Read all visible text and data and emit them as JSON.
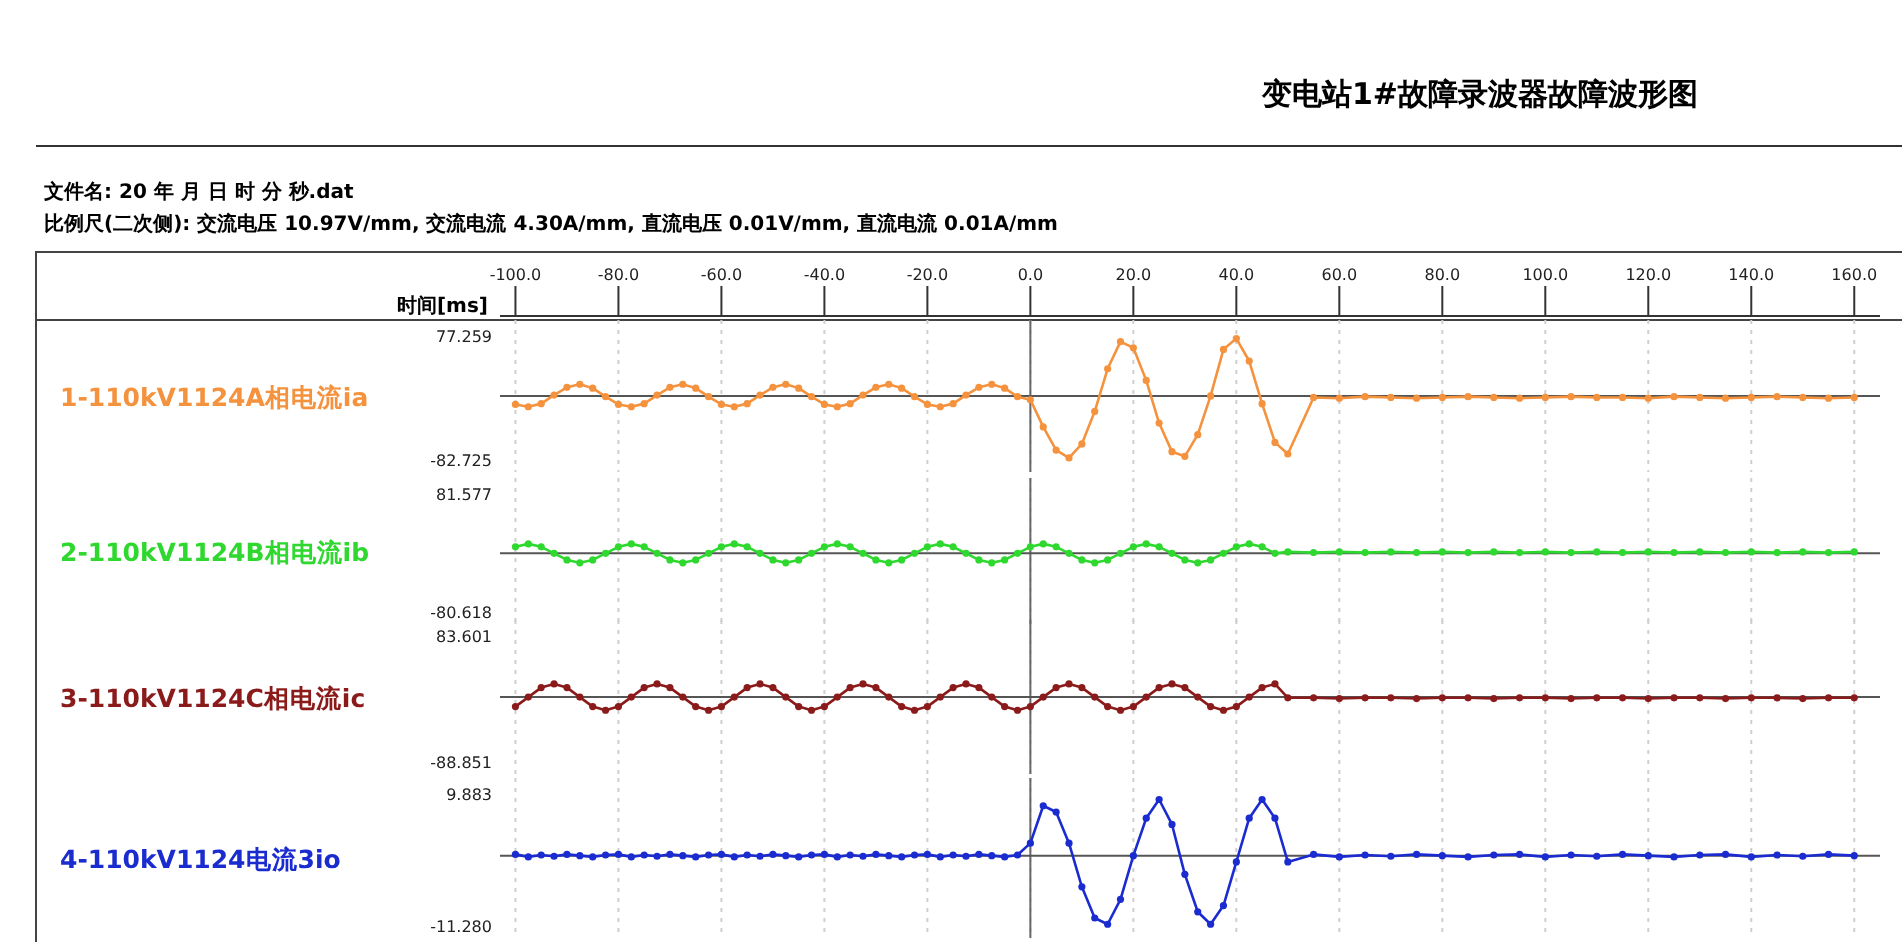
{
  "chart_data": [
    {
      "type": "line",
      "title": "变电站1#故障录波器故障波形图",
      "subtitle": "文件名: 20 年 月 日 时 分 秒.dat",
      "annotations": [
        "比例尺(二次侧): 交流电压 10.97V/mm, 交流电流 4.30A/mm, 直流电压 0.01V/mm, 直流电流 0.01A/mm"
      ],
      "xlabel": "时间[ms]",
      "xlim": [
        -103,
        165
      ],
      "xticks": [
        {
          "value": -100,
          "label": "-100.0"
        },
        {
          "value": -80,
          "label": "-80.0"
        },
        {
          "value": -60,
          "label": "-60.0"
        },
        {
          "value": -40,
          "label": "-40.0"
        },
        {
          "value": -20,
          "label": "-20.0"
        },
        {
          "value": 0,
          "label": "0.0"
        },
        {
          "value": 20,
          "label": "20.0"
        },
        {
          "value": 40,
          "label": "40.0"
        },
        {
          "value": 60,
          "label": "60.0"
        },
        {
          "value": 80,
          "label": "80.0"
        },
        {
          "value": 100,
          "label": "100.0"
        },
        {
          "value": 120,
          "label": "120.0"
        },
        {
          "value": 140,
          "label": "140.0"
        },
        {
          "value": 160,
          "label": "160.0"
        }
      ],
      "ylim": [
        -82.725,
        77.259
      ],
      "yticks": [
        -82.725,
        77.259
      ],
      "grid": "x",
      "marker": "circle",
      "ref_lines": [
        {
          "axis": "x",
          "value": 0,
          "color": "#666666"
        },
        {
          "axis": "y",
          "value": 0,
          "color": "#555555"
        }
      ],
      "x": [
        -100,
        -97.5,
        -95,
        -92.5,
        -90,
        -87.5,
        -85,
        -82.5,
        -80,
        -77.5,
        -75,
        -72.5,
        -70,
        -67.5,
        -65,
        -62.5,
        -60,
        -57.5,
        -55,
        -52.5,
        -50,
        -47.5,
        -45,
        -42.5,
        -40,
        -37.5,
        -35,
        -32.5,
        -30,
        -27.5,
        -25,
        -22.5,
        -20,
        -17.5,
        -15,
        -12.5,
        -10,
        -7.5,
        -5,
        -2.5,
        0,
        2.5,
        5,
        7.5,
        10,
        12.5,
        15,
        17.5,
        20,
        22.5,
        25,
        27.5,
        30,
        32.5,
        35,
        37.5,
        40,
        42.5,
        45,
        47.5,
        50,
        55,
        60,
        65,
        70,
        75,
        80,
        85,
        90,
        95,
        100,
        105,
        110,
        115,
        120,
        125,
        130,
        135,
        140,
        145,
        150,
        155,
        160
      ],
      "series": [
        {
          "name": "1-110kV1124A相电流ia",
          "color": "#f5923e",
          "values": [
            -11,
            -14,
            -10,
            1,
            11,
            15,
            10,
            -1,
            -11,
            -14,
            -10,
            1,
            11,
            15,
            10,
            -1,
            -11,
            -14,
            -10,
            1,
            11,
            15,
            10,
            -1,
            -11,
            -14,
            -10,
            1,
            11,
            15,
            10,
            -1,
            -11,
            -14,
            -10,
            1,
            11,
            15,
            10,
            -1,
            -5,
            -40,
            -70,
            -80,
            -62,
            -20,
            35,
            70,
            62,
            20,
            -35,
            -72,
            -78,
            -50,
            0,
            60,
            74,
            45,
            -10,
            -60,
            -75,
            -2,
            -3,
            -1,
            -2,
            -3,
            -2,
            -1,
            -2,
            -3,
            -2,
            -1,
            -2,
            -2,
            -3,
            -1,
            -2,
            -3,
            -2,
            -1,
            -2,
            -3,
            -2
          ]
        }
      ]
    },
    {
      "type": "line",
      "tick_labels": "y",
      "xlim": [
        -103,
        165
      ],
      "ylim": [
        -80.618,
        81.577
      ],
      "yticks": [
        -80.618,
        81.577
      ],
      "grid": "x",
      "marker": "circle",
      "ref_lines": [
        {
          "axis": "x",
          "value": 0,
          "color": "#666666"
        },
        {
          "axis": "y",
          "value": 0,
          "color": "#555555"
        }
      ],
      "x": [
        -100,
        -97.5,
        -95,
        -92.5,
        -90,
        -87.5,
        -85,
        -82.5,
        -80,
        -77.5,
        -75,
        -72.5,
        -70,
        -67.5,
        -65,
        -62.5,
        -60,
        -57.5,
        -55,
        -52.5,
        -50,
        -47.5,
        -45,
        -42.5,
        -40,
        -37.5,
        -35,
        -32.5,
        -30,
        -27.5,
        -25,
        -22.5,
        -20,
        -17.5,
        -15,
        -12.5,
        -10,
        -7.5,
        -5,
        -2.5,
        0,
        2.5,
        5,
        7.5,
        10,
        12.5,
        15,
        17.5,
        20,
        22.5,
        25,
        27.5,
        30,
        32.5,
        35,
        37.5,
        40,
        42.5,
        45,
        47.5,
        50,
        55,
        60,
        65,
        70,
        75,
        80,
        85,
        90,
        95,
        100,
        105,
        110,
        115,
        120,
        125,
        130,
        135,
        140,
        145,
        150,
        155,
        160
      ],
      "series": [
        {
          "name": "2-110kV1124B相电流ib",
          "color": "#2ed82e",
          "values": [
            9,
            13,
            9,
            0,
            -9,
            -13,
            -9,
            0,
            9,
            13,
            9,
            0,
            -9,
            -13,
            -9,
            0,
            9,
            13,
            9,
            0,
            -9,
            -13,
            -9,
            0,
            9,
            13,
            9,
            0,
            -9,
            -13,
            -9,
            0,
            9,
            13,
            9,
            0,
            -9,
            -13,
            -9,
            0,
            9,
            13,
            9,
            0,
            -9,
            -13,
            -9,
            0,
            9,
            13,
            9,
            0,
            -9,
            -13,
            -9,
            0,
            9,
            13,
            9,
            0,
            2,
            1,
            2,
            1,
            2,
            1,
            2,
            1,
            2,
            1,
            2,
            1,
            2,
            1,
            2,
            1,
            2,
            1,
            2,
            1,
            2,
            1,
            2
          ]
        }
      ]
    },
    {
      "type": "line",
      "tick_labels": "y",
      "xlim": [
        -103,
        165
      ],
      "ylim": [
        -88.851,
        83.601
      ],
      "yticks": [
        -88.851,
        83.601
      ],
      "grid": "x",
      "marker": "circle",
      "ref_lines": [
        {
          "axis": "x",
          "value": 0,
          "color": "#666666"
        },
        {
          "axis": "y",
          "value": 0,
          "color": "#555555"
        }
      ],
      "x": [
        -100,
        -97.5,
        -95,
        -92.5,
        -90,
        -87.5,
        -85,
        -82.5,
        -80,
        -77.5,
        -75,
        -72.5,
        -70,
        -67.5,
        -65,
        -62.5,
        -60,
        -57.5,
        -55,
        -52.5,
        -50,
        -47.5,
        -45,
        -42.5,
        -40,
        -37.5,
        -35,
        -32.5,
        -30,
        -27.5,
        -25,
        -22.5,
        -20,
        -17.5,
        -15,
        -12.5,
        -10,
        -7.5,
        -5,
        -2.5,
        0,
        2.5,
        5,
        7.5,
        10,
        12.5,
        15,
        17.5,
        20,
        22.5,
        25,
        27.5,
        30,
        32.5,
        35,
        37.5,
        40,
        42.5,
        45,
        47.5,
        50,
        55,
        60,
        65,
        70,
        75,
        80,
        85,
        90,
        95,
        100,
        105,
        110,
        115,
        120,
        125,
        130,
        135,
        140,
        145,
        150,
        155,
        160
      ],
      "series": [
        {
          "name": "3-110kV1124C相电流ic",
          "color": "#8b1a1a",
          "values": [
            -13,
            0,
            13,
            18,
            13,
            0,
            -13,
            -18,
            -13,
            0,
            13,
            18,
            13,
            0,
            -13,
            -18,
            -13,
            0,
            13,
            18,
            13,
            0,
            -13,
            -18,
            -13,
            0,
            13,
            18,
            13,
            0,
            -13,
            -18,
            -13,
            0,
            13,
            18,
            13,
            0,
            -13,
            -18,
            -13,
            0,
            13,
            18,
            13,
            0,
            -13,
            -18,
            -13,
            0,
            13,
            18,
            13,
            0,
            -13,
            -18,
            -13,
            0,
            13,
            18,
            -1,
            -1,
            -2,
            -1,
            -1,
            -2,
            -1,
            -1,
            -2,
            -1,
            -1,
            -2,
            -1,
            -1,
            -2,
            -1,
            -1,
            -2,
            -1,
            -1,
            -2,
            -1,
            -1
          ]
        }
      ]
    },
    {
      "type": "line",
      "tick_labels": "y",
      "xlim": [
        -103,
        165
      ],
      "ylim": [
        -11.28,
        9.883
      ],
      "yticks": [
        {
          "value": -11.28,
          "label": "-11.280"
        },
        9.883
      ],
      "grid": "x",
      "marker": "circle",
      "ref_lines": [
        {
          "axis": "x",
          "value": 0,
          "color": "#666666"
        },
        {
          "axis": "y",
          "value": 0,
          "color": "#555555"
        }
      ],
      "x": [
        -100,
        -97.5,
        -95,
        -92.5,
        -90,
        -87.5,
        -85,
        -82.5,
        -80,
        -77.5,
        -75,
        -72.5,
        -70,
        -67.5,
        -65,
        -62.5,
        -60,
        -57.5,
        -55,
        -52.5,
        -50,
        -47.5,
        -45,
        -42.5,
        -40,
        -37.5,
        -35,
        -32.5,
        -30,
        -27.5,
        -25,
        -22.5,
        -20,
        -17.5,
        -15,
        -12.5,
        -10,
        -7.5,
        -5,
        -2.5,
        0,
        2.5,
        5,
        7.5,
        10,
        12.5,
        15,
        17.5,
        20,
        22.5,
        25,
        27.5,
        30,
        32.5,
        35,
        37.5,
        40,
        42.5,
        45,
        47.5,
        50,
        55,
        60,
        65,
        70,
        75,
        80,
        85,
        90,
        95,
        100,
        105,
        110,
        115,
        120,
        125,
        130,
        135,
        140,
        145,
        150,
        155,
        160
      ],
      "series": [
        {
          "name": "4-110kV1124电流3io",
          "color": "#1a2bd0",
          "values": [
            0.2,
            -0.2,
            0.1,
            -0.1,
            0.2,
            0,
            -0.2,
            0.1,
            0.2,
            -0.2,
            0.1,
            -0.1,
            0.2,
            0,
            -0.2,
            0.1,
            0.2,
            -0.2,
            0.1,
            -0.1,
            0.2,
            0,
            -0.2,
            0.1,
            0.2,
            -0.2,
            0.1,
            -0.1,
            0.2,
            0,
            -0.2,
            0.1,
            0.2,
            -0.2,
            0.1,
            -0.1,
            0.2,
            0,
            -0.2,
            0.1,
            2,
            8,
            7,
            2,
            -5,
            -10,
            -11,
            -7,
            0,
            6,
            9,
            5,
            -3,
            -9,
            -11,
            -8,
            -1,
            6,
            9,
            6,
            -1,
            0.2,
            -0.2,
            0.1,
            -0.1,
            0.2,
            0,
            -0.2,
            0.1,
            0.2,
            -0.2,
            0.1,
            -0.1,
            0.2,
            0,
            -0.2,
            0.1,
            0.2,
            -0.2,
            0.1,
            -0.1,
            0.2,
            0
          ]
        }
      ]
    }
  ]
}
